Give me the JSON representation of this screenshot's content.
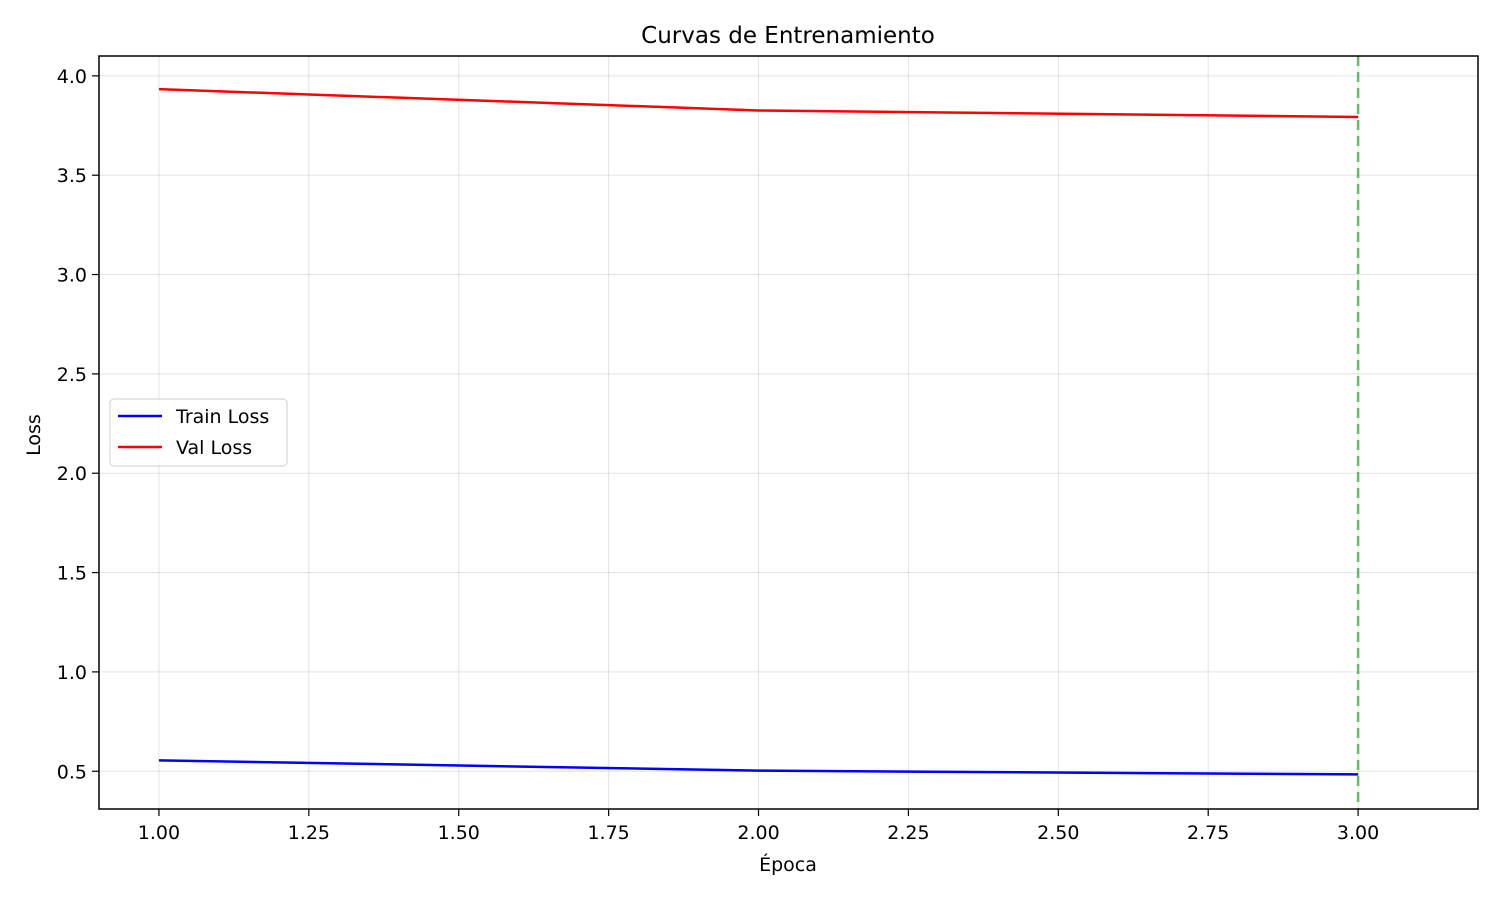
{
  "chart_data": {
    "type": "line",
    "title": "Curvas de Entrenamiento",
    "xlabel": "Época",
    "ylabel": "Loss",
    "x": [
      1,
      2,
      3
    ],
    "series": [
      {
        "name": "Train Loss",
        "color": "#0000ff",
        "values": [
          0.555,
          0.503,
          0.484
        ]
      },
      {
        "name": "Val Loss",
        "color": "#ff0000",
        "values": [
          3.933,
          3.826,
          3.793
        ]
      }
    ],
    "xlim": [
      0.9,
      3.2
    ],
    "ylim": [
      0.31,
      4.1
    ],
    "xticks": [
      "1.00",
      "1.25",
      "1.50",
      "1.75",
      "2.00",
      "2.25",
      "2.50",
      "2.75",
      "3.00"
    ],
    "yticks": [
      "0.5",
      "1.0",
      "1.5",
      "2.0",
      "2.5",
      "3.0",
      "3.5",
      "4.0"
    ],
    "vline": {
      "x": 3.0,
      "color": "#4caf50",
      "style": "dashed"
    },
    "grid": true,
    "legend": "center-left"
  }
}
